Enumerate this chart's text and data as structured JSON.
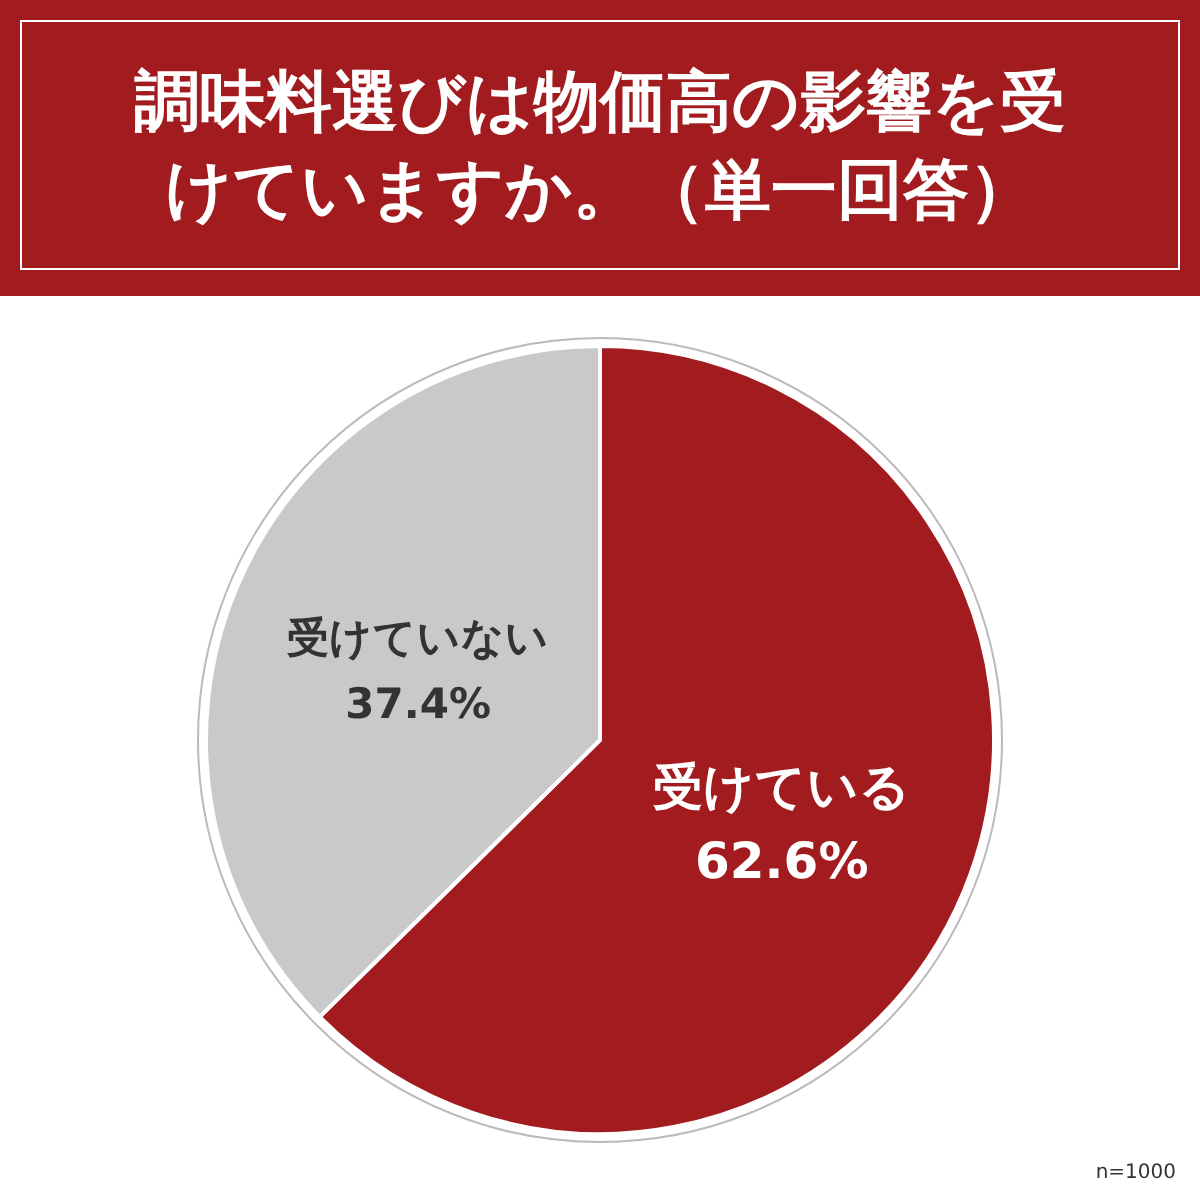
{
  "chart_data": {
    "type": "pie",
    "title": "調味料選びは物価高の影響を受けていますか。（単一回答）",
    "categories": [
      "受けている",
      "受けていない"
    ],
    "values": [
      62.6,
      37.4
    ],
    "value_labels": [
      "62.6%",
      "37.4%"
    ],
    "colors": [
      "#a11b1f",
      "#c9c9c9"
    ],
    "annotations": [
      "n=1000"
    ]
  }
}
